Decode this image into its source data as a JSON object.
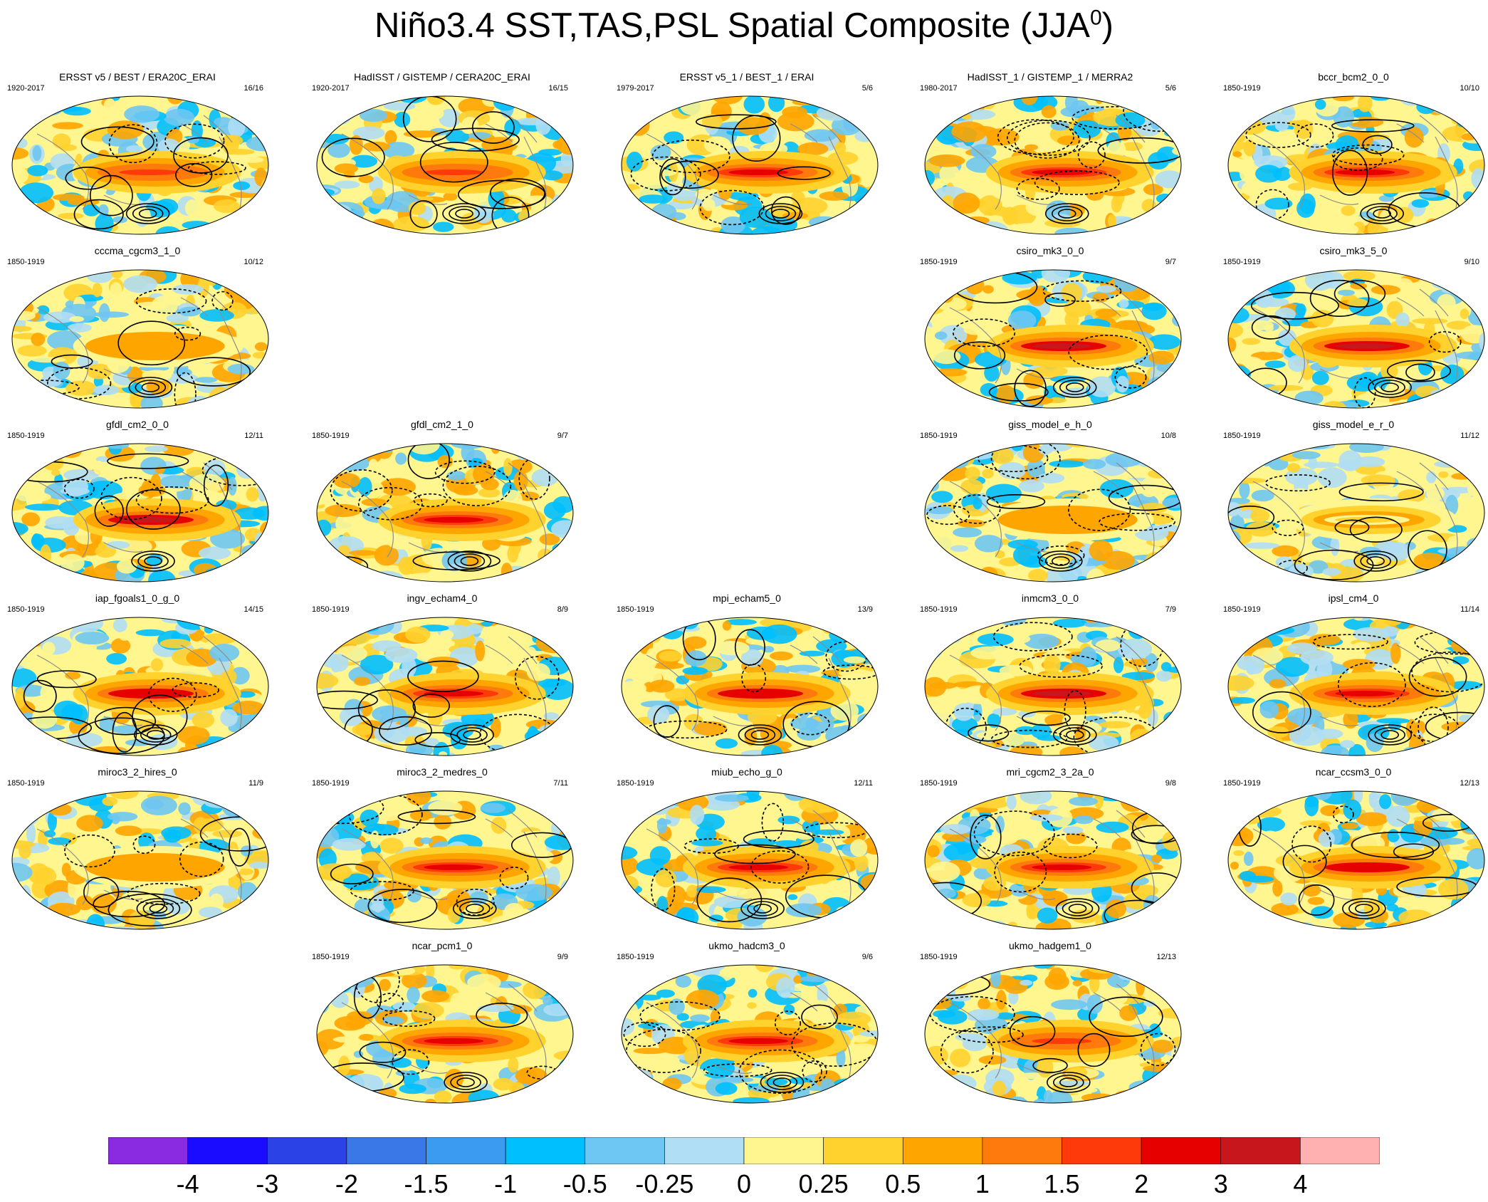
{
  "title": {
    "main": "Niño3.4 SST,TAS,PSL Spatial Composite (JJA",
    "sup": "0",
    "close": ")"
  },
  "colors": {
    "land_outline": "#8c8c8c",
    "contour": "#000000",
    "bins": [
      "#8a2be2",
      "#1a0dff",
      "#2b43e6",
      "#3a78e8",
      "#3a9bf0",
      "#00bfff",
      "#6ec6f2",
      "#b0def4",
      "#fff68f",
      "#ffd22e",
      "#ffa500",
      "#ff7a0d",
      "#ff3a0a",
      "#e60000",
      "#c8161d",
      "#ffb0b0"
    ]
  },
  "colorbar": {
    "labels": [
      "-4",
      "-3",
      "-2",
      "-1.5",
      "-1",
      "-0.5",
      "-0.25",
      "0",
      "0.25",
      "0.5",
      "1",
      "1.5",
      "2",
      "3",
      "4"
    ],
    "bin_count": 16
  },
  "panels": [
    {
      "title": "ERSST v5 / BEST / ERA20C_ERAI",
      "years": "1920-2017",
      "count": "16/16",
      "row": 0,
      "col": 0,
      "amp": 0.8,
      "seed": 11
    },
    {
      "title": "HadISST / GISTEMP / CERA20C_ERAI",
      "years": "1920-2017",
      "count": "16/15",
      "row": 0,
      "col": 1,
      "amp": 0.8,
      "seed": 12
    },
    {
      "title": "ERSST v5_1 / BEST_1 / ERAI",
      "years": "1979-2017",
      "count": "5/6",
      "row": 0,
      "col": 2,
      "amp": 0.9,
      "seed": 13
    },
    {
      "title": "HadISST_1 / GISTEMP_1 / MERRA2",
      "years": "1980-2017",
      "count": "5/6",
      "row": 0,
      "col": 3,
      "amp": 0.9,
      "seed": 14
    },
    {
      "title": "bccr_bcm2_0_0",
      "years": "1850-1919",
      "count": "10/10",
      "row": 0,
      "col": 4,
      "amp": 0.9,
      "seed": 15
    },
    {
      "title": "cccma_cgcm3_1_0",
      "years": "1850-1919",
      "count": "10/12",
      "row": 1,
      "col": 0,
      "amp": 0.4,
      "seed": 21
    },
    {
      "title": "csiro_mk3_0_0",
      "years": "1850-1919",
      "count": "9/7",
      "row": 1,
      "col": 3,
      "amp": 1.2,
      "seed": 22
    },
    {
      "title": "csiro_mk3_5_0",
      "years": "1850-1919",
      "count": "9/10",
      "row": 1,
      "col": 4,
      "amp": 1.2,
      "seed": 23
    },
    {
      "title": "gfdl_cm2_0_0",
      "years": "1850-1919",
      "count": "12/11",
      "row": 2,
      "col": 0,
      "amp": 1.2,
      "seed": 31
    },
    {
      "title": "gfdl_cm2_1_0",
      "years": "1850-1919",
      "count": "9/7",
      "row": 2,
      "col": 1,
      "amp": 1.0,
      "seed": 32
    },
    {
      "title": "giss_model_e_h_0",
      "years": "1850-1919",
      "count": "10/8",
      "row": 2,
      "col": 3,
      "amp": 0.4,
      "seed": 33
    },
    {
      "title": "giss_model_e_r_0",
      "years": "1850-1919",
      "count": "11/12",
      "row": 2,
      "col": 4,
      "amp": 0.2,
      "seed": 34
    },
    {
      "title": "iap_fgoals1_0_g_0",
      "years": "1850-1919",
      "count": "14/15",
      "row": 3,
      "col": 0,
      "amp": 1.1,
      "seed": 41
    },
    {
      "title": "ingv_echam4_0",
      "years": "1850-1919",
      "count": "8/9",
      "row": 3,
      "col": 1,
      "amp": 1.0,
      "seed": 42
    },
    {
      "title": "mpi_echam5_0",
      "years": "1850-1919",
      "count": "13/9",
      "row": 3,
      "col": 2,
      "amp": 1.1,
      "seed": 43
    },
    {
      "title": "inmcm3_0_0",
      "years": "1850-1919",
      "count": "7/9",
      "row": 3,
      "col": 3,
      "amp": 1.2,
      "seed": 44
    },
    {
      "title": "ipsl_cm4_0",
      "years": "1850-1919",
      "count": "11/14",
      "row": 3,
      "col": 4,
      "amp": 1.0,
      "seed": 45
    },
    {
      "title": "miroc3_2_hires_0",
      "years": "1850-1919",
      "count": "11/9",
      "row": 4,
      "col": 0,
      "amp": 0.4,
      "seed": 51
    },
    {
      "title": "miroc3_2_medres_0",
      "years": "1850-1919",
      "count": "7/11",
      "row": 4,
      "col": 1,
      "amp": 0.9,
      "seed": 52
    },
    {
      "title": "miub_echo_g_0",
      "years": "1850-1919",
      "count": "12/11",
      "row": 4,
      "col": 2,
      "amp": 1.0,
      "seed": 53
    },
    {
      "title": "mri_cgcm2_3_2a_0",
      "years": "1850-1919",
      "count": "9/8",
      "row": 4,
      "col": 3,
      "amp": 0.9,
      "seed": 54
    },
    {
      "title": "ncar_ccsm3_0_0",
      "years": "1850-1919",
      "count": "12/13",
      "row": 4,
      "col": 4,
      "amp": 1.1,
      "seed": 55
    },
    {
      "title": "ncar_pcm1_0",
      "years": "1850-1919",
      "count": "9/9",
      "row": 5,
      "col": 1,
      "amp": 0.9,
      "seed": 61
    },
    {
      "title": "ukmo_hadcm3_0",
      "years": "1850-1919",
      "count": "9/6",
      "row": 5,
      "col": 2,
      "amp": 0.9,
      "seed": 62
    },
    {
      "title": "ukmo_hadgem1_0",
      "years": "1850-1919",
      "count": "12/13",
      "row": 5,
      "col": 3,
      "amp": 0.8,
      "seed": 63
    }
  ]
}
